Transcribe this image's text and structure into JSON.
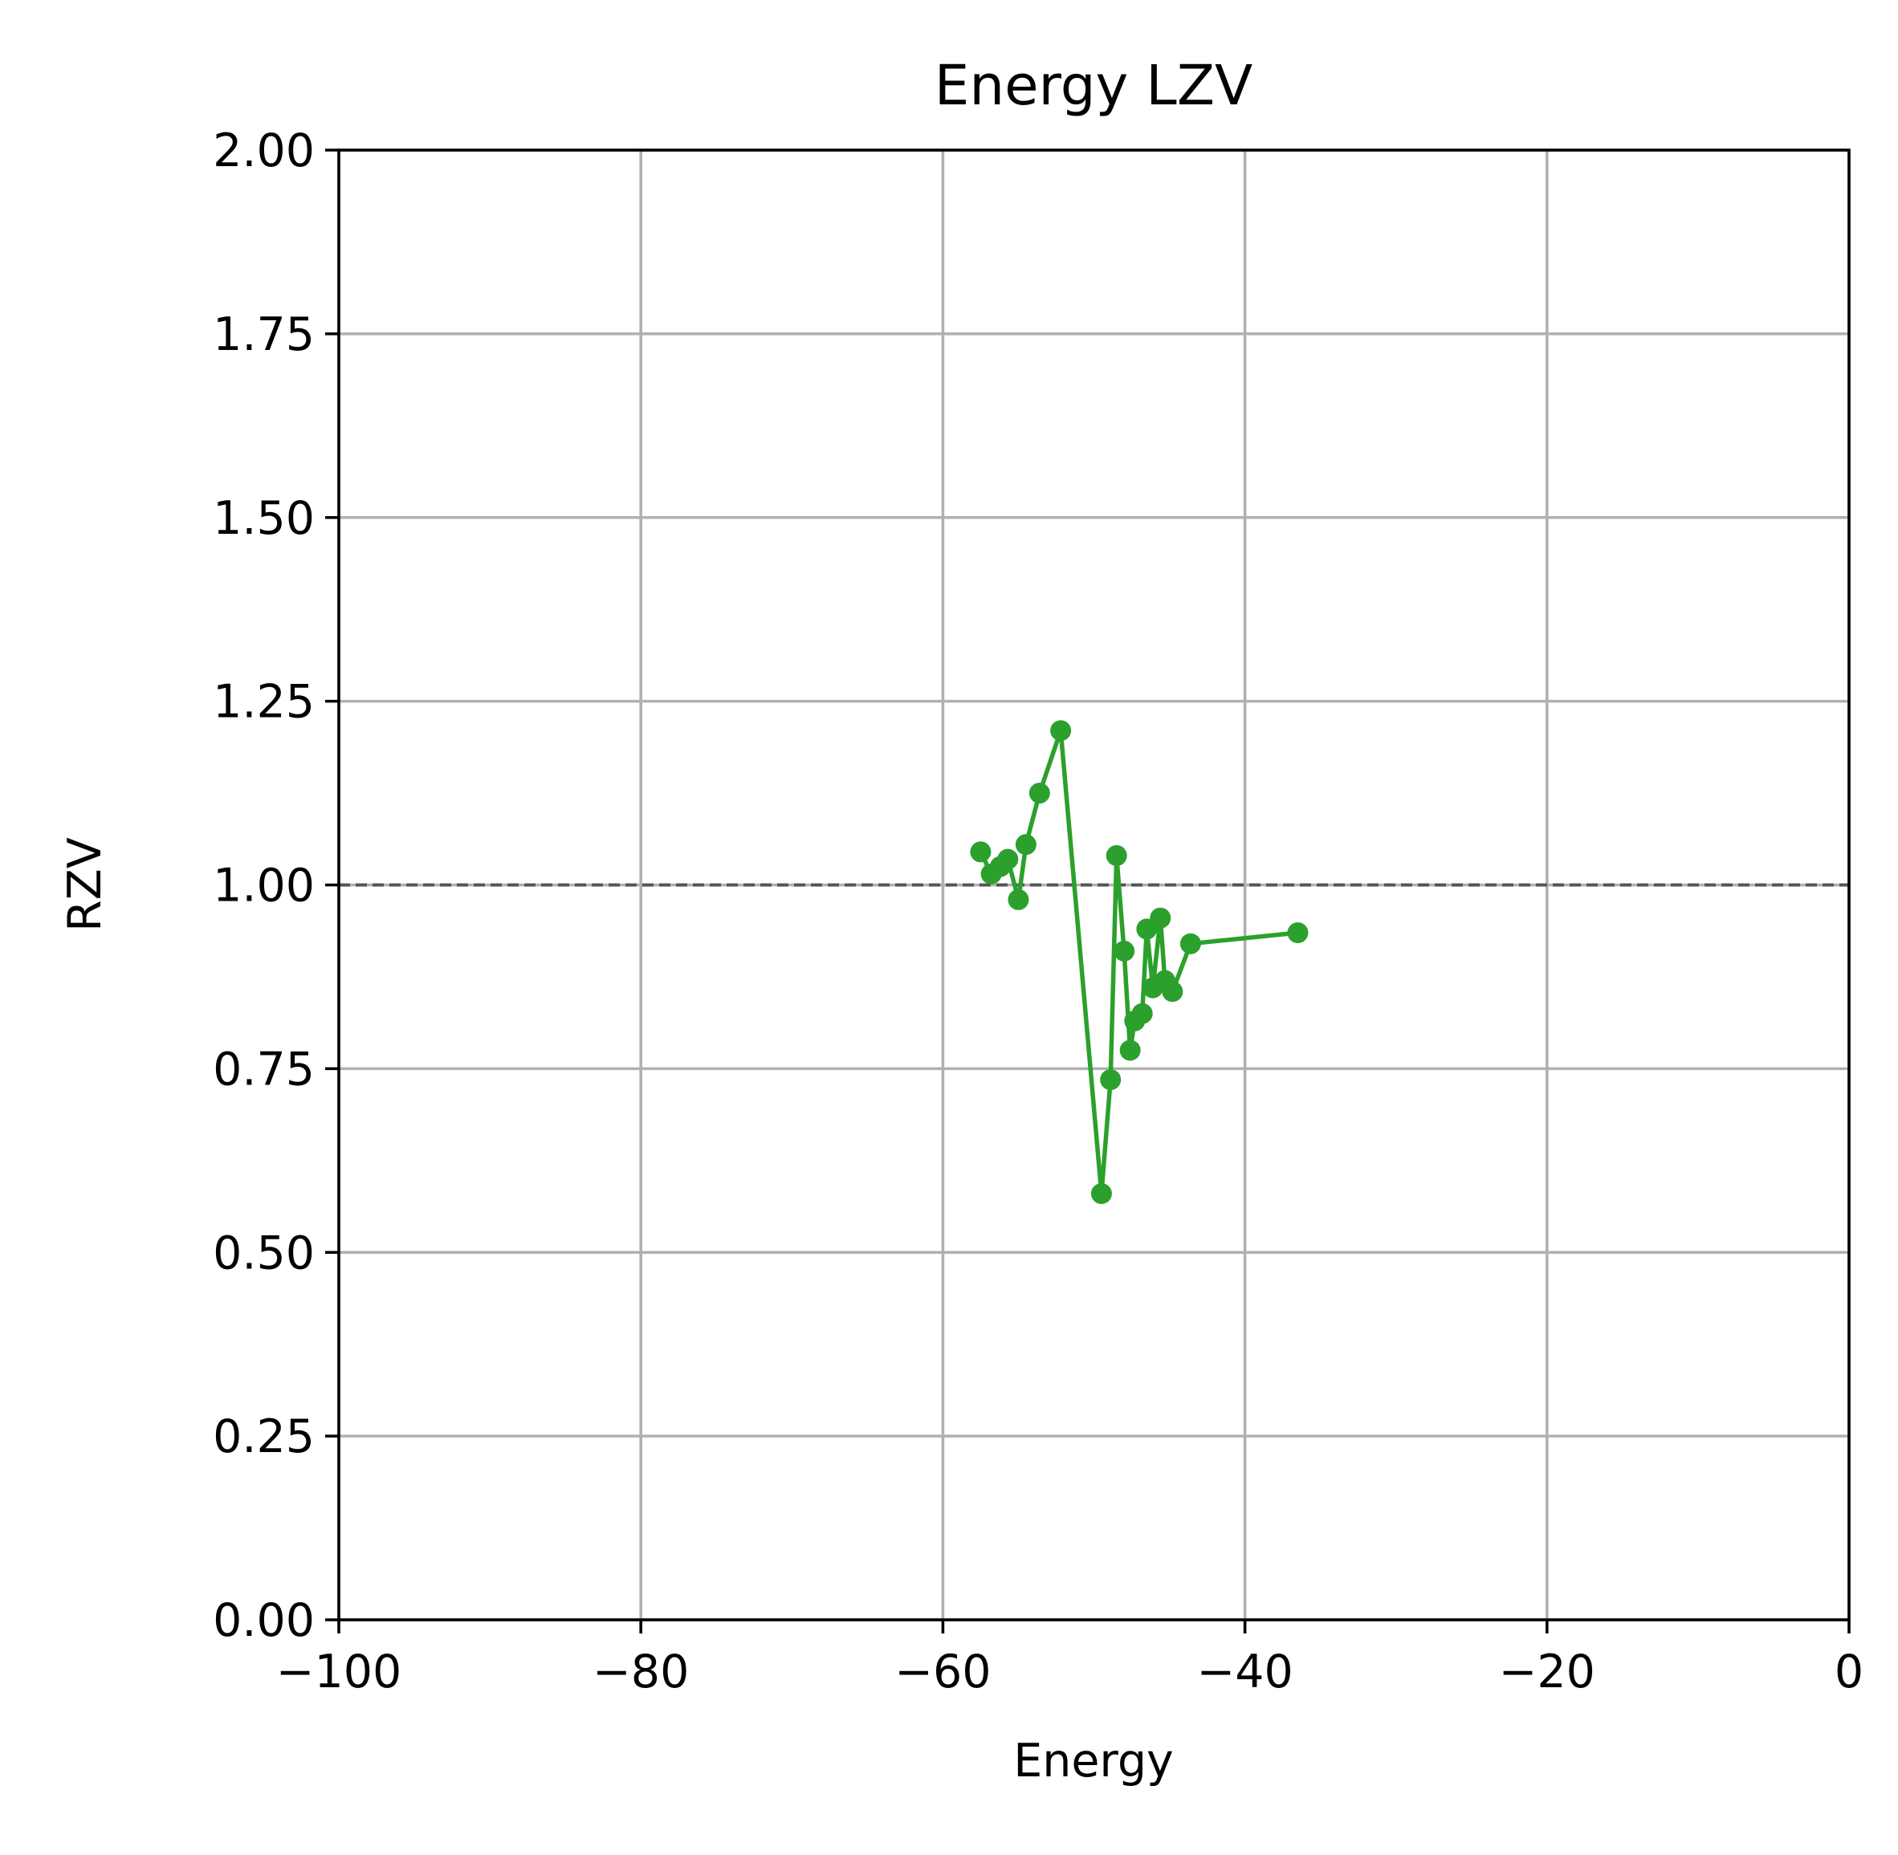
{
  "chart_data": {
    "type": "line",
    "title": "Energy LZV",
    "xlabel": "Energy",
    "ylabel": "RZV",
    "xlim": [
      -100,
      0
    ],
    "ylim": [
      0,
      2
    ],
    "x_ticks": [
      -100,
      -80,
      -60,
      -40,
      -20,
      0
    ],
    "x_tick_labels": [
      "−100",
      "−80",
      "−60",
      "−40",
      "−20",
      "0"
    ],
    "y_ticks": [
      0,
      0.25,
      0.5,
      0.75,
      1.0,
      1.25,
      1.5,
      1.75,
      2.0
    ],
    "y_tick_labels": [
      "0.00",
      "0.25",
      "0.50",
      "0.75",
      "1.00",
      "1.25",
      "1.50",
      "1.75",
      "2.00"
    ],
    "grid": true,
    "reference_line": {
      "y": 1.0,
      "style": "dashed",
      "color": "#555555"
    },
    "series": [
      {
        "color": "#2ca02c",
        "marker": "circle",
        "x": [
          -57.5,
          -56.8,
          -56.2,
          -55.7,
          -55.0,
          -54.5,
          -53.6,
          -52.2,
          -49.5,
          -48.9,
          -48.5,
          -48.0,
          -47.6,
          -47.3,
          -46.8,
          -46.5,
          -46.1,
          -45.6,
          -45.3,
          -44.8,
          -43.6,
          -36.5
        ],
        "y": [
          1.045,
          1.015,
          1.025,
          1.035,
          0.98,
          1.055,
          1.125,
          1.21,
          0.58,
          0.735,
          1.04,
          0.91,
          0.775,
          0.815,
          0.825,
          0.94,
          0.86,
          0.955,
          0.87,
          0.855,
          0.92,
          0.935
        ]
      }
    ]
  }
}
